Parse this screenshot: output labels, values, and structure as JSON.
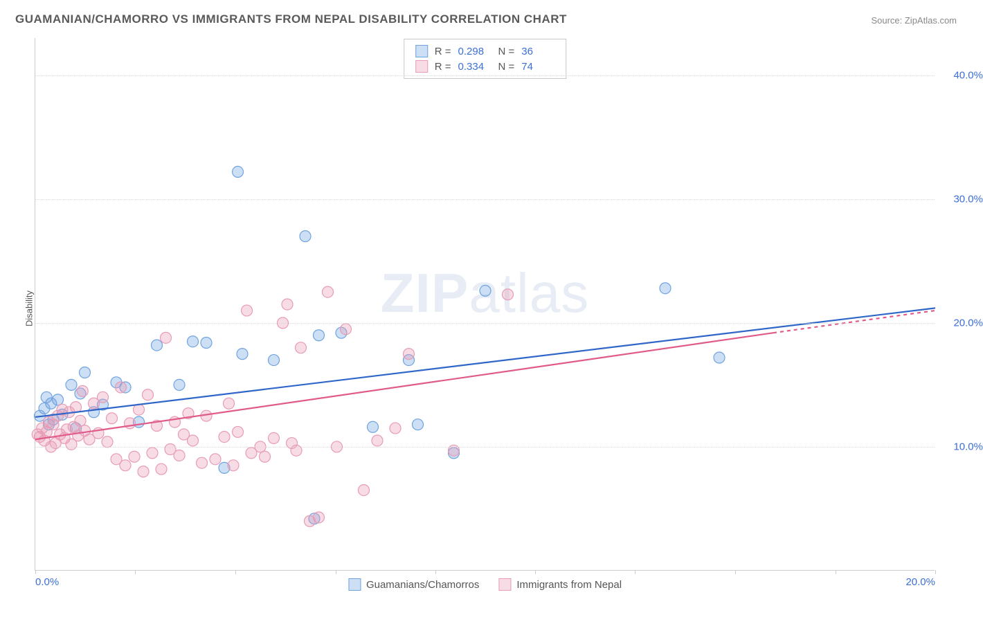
{
  "title": "GUAMANIAN/CHAMORRO VS IMMIGRANTS FROM NEPAL DISABILITY CORRELATION CHART",
  "source": "Source: ZipAtlas.com",
  "ylabel": "Disability",
  "watermark_bold": "ZIP",
  "watermark_rest": "atlas",
  "chart": {
    "type": "scatter",
    "xlim": [
      0,
      20
    ],
    "ylim": [
      0,
      43
    ],
    "xtick_labels": [
      "0.0%",
      "20.0%"
    ],
    "xtick_positions": [
      0,
      20
    ],
    "xtick_marks": [
      0,
      2.22,
      4.44,
      6.67,
      8.89,
      11.11,
      13.33,
      15.56,
      17.78,
      20
    ],
    "ytick_labels": [
      "10.0%",
      "20.0%",
      "30.0%",
      "40.0%"
    ],
    "ytick_positions": [
      10,
      20,
      30,
      40
    ],
    "grid_color": "#d8d8d8",
    "background_color": "#ffffff",
    "marker_radius": 8,
    "marker_opacity": 0.55,
    "line_width": 2.2,
    "title_fontsize": 17,
    "label_fontsize": 13,
    "tick_fontsize": 15,
    "tick_color": "#3b6fd6"
  },
  "series": [
    {
      "name": "Guamanians/Chamorros",
      "color": "#6fa3e0",
      "fill": "rgba(111,163,224,0.35)",
      "line_color": "#2e66c9",
      "r": "0.298",
      "n": "36",
      "trend": {
        "x1": 0,
        "y1": 12.4,
        "x2": 20,
        "y2": 21.2
      },
      "points": [
        [
          0.1,
          12.5
        ],
        [
          0.2,
          13.1
        ],
        [
          0.25,
          14.0
        ],
        [
          0.3,
          11.8
        ],
        [
          0.35,
          13.5
        ],
        [
          0.4,
          12.2
        ],
        [
          0.5,
          13.8
        ],
        [
          0.6,
          12.6
        ],
        [
          0.8,
          15.0
        ],
        [
          0.9,
          11.5
        ],
        [
          1.0,
          14.3
        ],
        [
          1.1,
          16.0
        ],
        [
          1.3,
          12.8
        ],
        [
          1.5,
          13.4
        ],
        [
          1.8,
          15.2
        ],
        [
          2.0,
          14.8
        ],
        [
          2.3,
          12.0
        ],
        [
          2.7,
          18.2
        ],
        [
          3.2,
          15.0
        ],
        [
          3.5,
          18.5
        ],
        [
          3.8,
          18.4
        ],
        [
          4.2,
          8.3
        ],
        [
          4.5,
          32.2
        ],
        [
          4.6,
          17.5
        ],
        [
          5.3,
          17.0
        ],
        [
          6.0,
          27.0
        ],
        [
          6.2,
          4.2
        ],
        [
          6.3,
          19.0
        ],
        [
          6.8,
          19.2
        ],
        [
          7.5,
          11.6
        ],
        [
          8.3,
          17.0
        ],
        [
          8.5,
          11.8
        ],
        [
          9.3,
          9.5
        ],
        [
          10.0,
          22.6
        ],
        [
          14.0,
          22.8
        ],
        [
          15.2,
          17.2
        ]
      ]
    },
    {
      "name": "Immigrants from Nepal",
      "color": "#e89bb4",
      "fill": "rgba(232,155,180,0.35)",
      "line_color": "#e05a8a",
      "r": "0.334",
      "n": "74",
      "trend": {
        "x1": 0,
        "y1": 10.6,
        "x2": 16.4,
        "y2": 19.2
      },
      "trend_dash": {
        "x1": 16.4,
        "y1": 19.2,
        "x2": 20,
        "y2": 21.0
      },
      "points": [
        [
          0.05,
          11.0
        ],
        [
          0.1,
          10.8
        ],
        [
          0.15,
          11.5
        ],
        [
          0.2,
          10.5
        ],
        [
          0.25,
          11.2
        ],
        [
          0.3,
          12.0
        ],
        [
          0.35,
          10.0
        ],
        [
          0.4,
          11.8
        ],
        [
          0.45,
          10.3
        ],
        [
          0.5,
          12.5
        ],
        [
          0.55,
          11.0
        ],
        [
          0.6,
          13.0
        ],
        [
          0.65,
          10.7
        ],
        [
          0.7,
          11.4
        ],
        [
          0.75,
          12.8
        ],
        [
          0.8,
          10.2
        ],
        [
          0.85,
          11.6
        ],
        [
          0.9,
          13.2
        ],
        [
          0.95,
          10.9
        ],
        [
          1.0,
          12.1
        ],
        [
          1.05,
          14.5
        ],
        [
          1.1,
          11.3
        ],
        [
          1.2,
          10.6
        ],
        [
          1.3,
          13.5
        ],
        [
          1.4,
          11.1
        ],
        [
          1.5,
          14.0
        ],
        [
          1.6,
          10.4
        ],
        [
          1.7,
          12.3
        ],
        [
          1.8,
          9.0
        ],
        [
          1.9,
          14.8
        ],
        [
          2.0,
          8.5
        ],
        [
          2.1,
          11.9
        ],
        [
          2.2,
          9.2
        ],
        [
          2.3,
          13.0
        ],
        [
          2.4,
          8.0
        ],
        [
          2.5,
          14.2
        ],
        [
          2.6,
          9.5
        ],
        [
          2.7,
          11.7
        ],
        [
          2.8,
          8.2
        ],
        [
          2.9,
          18.8
        ],
        [
          3.0,
          9.8
        ],
        [
          3.1,
          12.0
        ],
        [
          3.2,
          9.3
        ],
        [
          3.3,
          11.0
        ],
        [
          3.5,
          10.5
        ],
        [
          3.7,
          8.7
        ],
        [
          3.8,
          12.5
        ],
        [
          4.0,
          9.0
        ],
        [
          4.2,
          10.8
        ],
        [
          4.4,
          8.5
        ],
        [
          4.5,
          11.2
        ],
        [
          4.7,
          21.0
        ],
        [
          4.8,
          9.5
        ],
        [
          5.0,
          10.0
        ],
        [
          5.1,
          9.2
        ],
        [
          5.3,
          10.7
        ],
        [
          5.5,
          20.0
        ],
        [
          5.6,
          21.5
        ],
        [
          5.7,
          10.3
        ],
        [
          5.8,
          9.7
        ],
        [
          5.9,
          18.0
        ],
        [
          6.3,
          4.3
        ],
        [
          6.5,
          22.5
        ],
        [
          6.7,
          10.0
        ],
        [
          6.9,
          19.5
        ],
        [
          7.3,
          6.5
        ],
        [
          7.6,
          10.5
        ],
        [
          8.0,
          11.5
        ],
        [
          8.3,
          17.5
        ],
        [
          9.3,
          9.7
        ],
        [
          10.5,
          22.3
        ],
        [
          6.1,
          4.0
        ],
        [
          4.3,
          13.5
        ],
        [
          3.4,
          12.7
        ]
      ]
    }
  ],
  "stats_labels": {
    "r": "R =",
    "n": "N ="
  }
}
